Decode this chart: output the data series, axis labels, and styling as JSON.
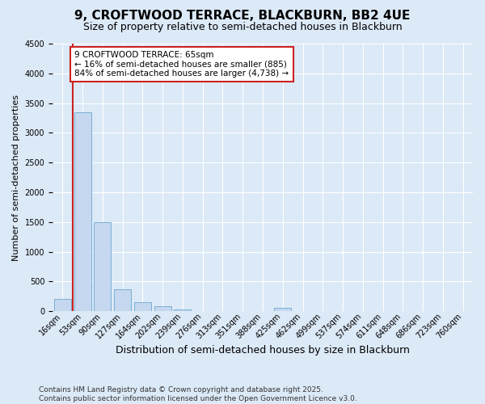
{
  "title": "9, CROFTWOOD TERRACE, BLACKBURN, BB2 4UE",
  "subtitle": "Size of property relative to semi-detached houses in Blackburn",
  "xlabel": "Distribution of semi-detached houses by size in Blackburn",
  "ylabel": "Number of semi-detached properties",
  "footer": "Contains HM Land Registry data © Crown copyright and database right 2025.\nContains public sector information licensed under the Open Government Licence v3.0.",
  "bar_categories": [
    "16sqm",
    "53sqm",
    "90sqm",
    "127sqm",
    "164sqm",
    "202sqm",
    "239sqm",
    "276sqm",
    "313sqm",
    "351sqm",
    "388sqm",
    "425sqm",
    "462sqm",
    "499sqm",
    "537sqm",
    "574sqm",
    "611sqm",
    "648sqm",
    "686sqm",
    "723sqm",
    "760sqm"
  ],
  "bar_values": [
    200,
    3350,
    1500,
    375,
    150,
    80,
    30,
    0,
    0,
    0,
    0,
    50,
    0,
    0,
    0,
    0,
    0,
    0,
    0,
    0,
    0
  ],
  "bar_color": "#c5d8f0",
  "bar_edge_color": "#7bafd4",
  "background_color": "#dce9f7",
  "grid_color": "#ffffff",
  "vline_x": 0.5,
  "vline_color": "#cc2222",
  "annotation_text": "9 CROFTWOOD TERRACE: 65sqm\n← 16% of semi-detached houses are smaller (885)\n84% of semi-detached houses are larger (4,738) →",
  "annotation_box_color": "#ffffff",
  "annotation_box_edge_color": "#cc2222",
  "ylim": [
    0,
    4500
  ],
  "yticks": [
    0,
    500,
    1000,
    1500,
    2000,
    2500,
    3000,
    3500,
    4000,
    4500
  ],
  "title_fontsize": 11,
  "subtitle_fontsize": 9,
  "xlabel_fontsize": 9,
  "ylabel_fontsize": 8,
  "tick_fontsize": 7,
  "annotation_fontsize": 7.5,
  "footer_fontsize": 6.5
}
